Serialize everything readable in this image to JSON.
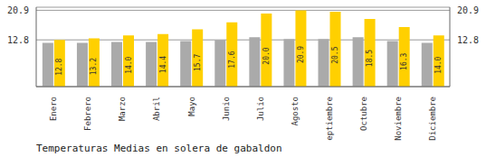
{
  "chart_data": {
    "type": "bar",
    "title": "Temperaturas Medias en solera de gabaldon",
    "categories": [
      "Enero",
      "Febrero",
      "Marzo",
      "Abril",
      "Mayo",
      "Junio",
      "Julio",
      "Agosto",
      "Septiembre",
      "Octubre",
      "Noviembre",
      "Diciembre"
    ],
    "series": [
      {
        "color": "#AAAAAA",
        "values": [
          12.0,
          12.0,
          12.2,
          12.2,
          12.5,
          12.8,
          13.5,
          13.0,
          13.0,
          13.5,
          12.5,
          12.0
        ]
      },
      {
        "color": "#FFD000",
        "values": [
          12.8,
          13.2,
          14.0,
          14.4,
          15.7,
          17.6,
          20.0,
          20.9,
          20.5,
          18.5,
          16.3,
          14.0
        ],
        "data_labels": true,
        "value_labels": [
          "12.8",
          "13.2",
          "14.0",
          "14.4",
          "15.7",
          "17.6",
          "20.0",
          "20.9",
          "20.5",
          "18.5",
          "16.3",
          "14.0"
        ]
      }
    ],
    "ylim": [
      0,
      21.736
    ],
    "yticks": [
      12.8,
      20.9
    ],
    "y2lim": [
      0,
      21.736
    ],
    "y2ticks": [
      12.8,
      20.9
    ],
    "grid": true
  }
}
